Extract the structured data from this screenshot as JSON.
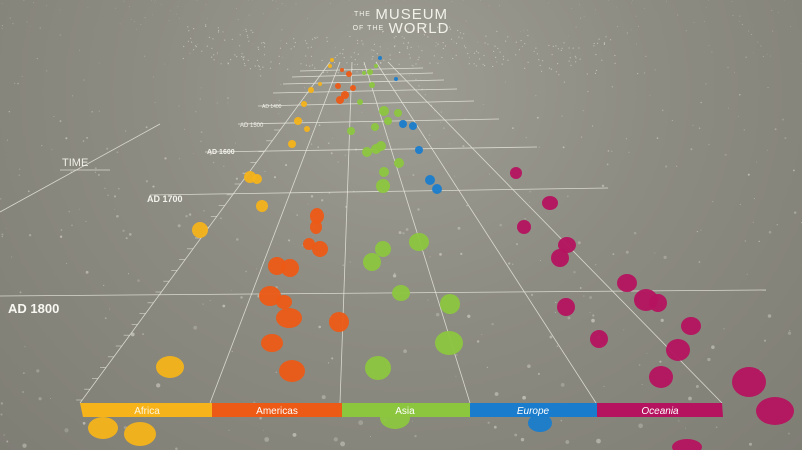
{
  "logo": {
    "the1": "THE",
    "word1": "MUSEUM",
    "ofthe": "OF THE",
    "word2": "WORLD"
  },
  "axis": {
    "time_label": "TIME",
    "time_marks": [
      "AD 1400",
      "AD 1500",
      "AD 1600",
      "AD 1700",
      "AD 1800"
    ]
  },
  "regions": [
    {
      "label": "Africa",
      "color": "#f6b31a"
    },
    {
      "label": "Americas",
      "color": "#ed5a16"
    },
    {
      "label": "Asia",
      "color": "#8cc63f"
    },
    {
      "label": "Europe",
      "color": "#1a7ccc"
    },
    {
      "label": "Oceania",
      "color": "#b5135f"
    }
  ]
}
